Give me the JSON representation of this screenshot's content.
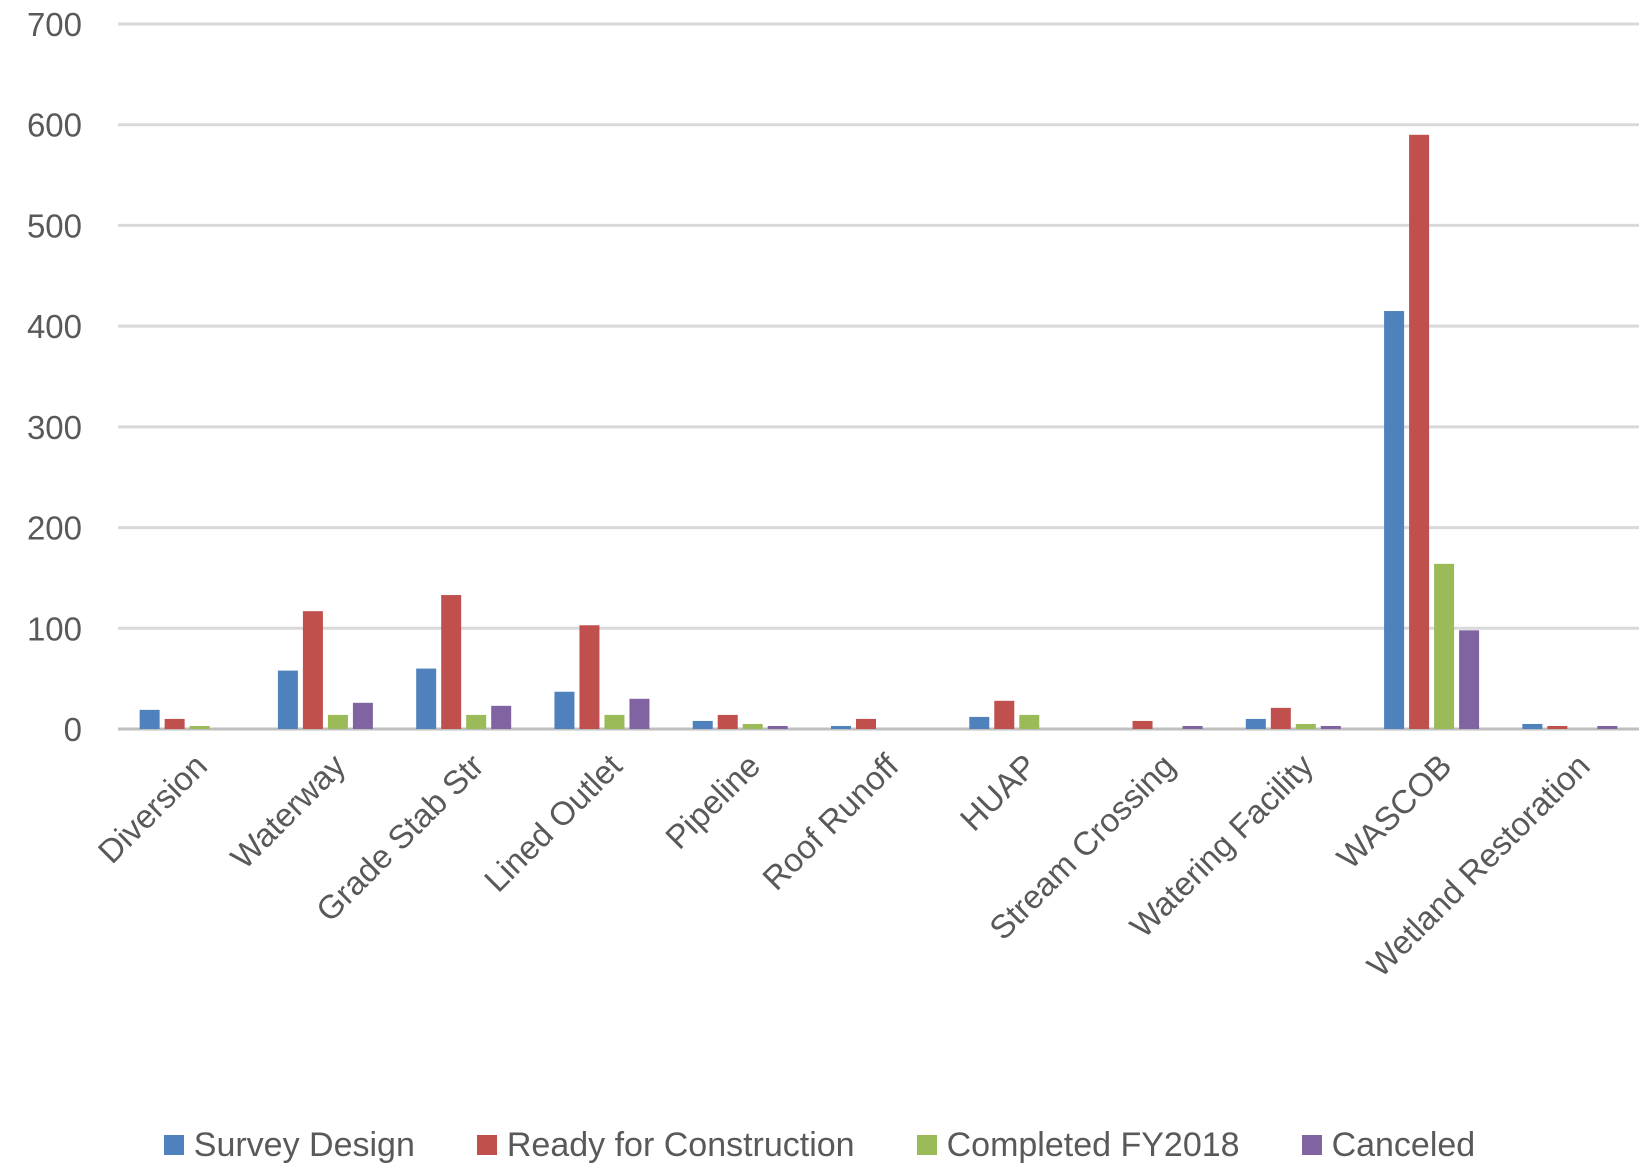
{
  "chart_data": {
    "type": "bar",
    "categories": [
      "Diversion",
      "Waterway",
      "Grade Stab Str",
      "Lined Outlet",
      "Pipeline",
      "Roof Runoff",
      "HUAP",
      "Stream Crossing",
      "Watering Facility",
      "WASCOB",
      "Wetland Restoration"
    ],
    "series": [
      {
        "name": "Survey Design",
        "color": "#4F81BD",
        "values": [
          19,
          58,
          60,
          37,
          8,
          3,
          12,
          0,
          10,
          415,
          5
        ]
      },
      {
        "name": "Ready for Construction",
        "color": "#C0504D",
        "values": [
          10,
          117,
          133,
          103,
          14,
          10,
          28,
          8,
          21,
          590,
          3
        ]
      },
      {
        "name": "Completed FY2018",
        "color": "#9BBB59",
        "values": [
          3,
          14,
          14,
          14,
          5,
          0,
          14,
          0,
          5,
          164,
          0
        ]
      },
      {
        "name": "Canceled",
        "color": "#8064A2",
        "values": [
          0,
          26,
          23,
          30,
          3,
          0,
          0,
          3,
          3,
          98,
          3
        ]
      }
    ],
    "ylim": [
      0,
      700
    ],
    "yticks": [
      0,
      100,
      200,
      300,
      400,
      500,
      600,
      700
    ],
    "grid": true,
    "legend_position": "bottom"
  }
}
